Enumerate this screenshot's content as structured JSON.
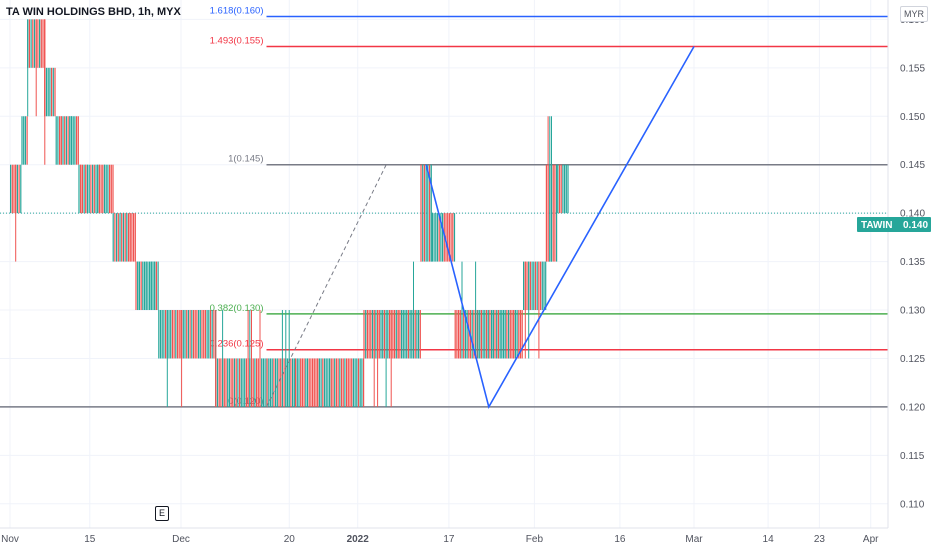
{
  "header": {
    "title": "TA WIN HOLDINGS BHD, 1h, MYX",
    "currency": "MYR"
  },
  "badges": {
    "earnings": "E"
  },
  "price_tag": {
    "symbol": "TAWIN",
    "value": "0.140"
  },
  "colors": {
    "up": "#26a69a",
    "down": "#ef5350",
    "blue": "#2962ff",
    "red": "#f23645",
    "green": "#4caf50",
    "grey": "#787b86",
    "priceline": "#26a69a"
  },
  "chart_data": {
    "type": "candlestick",
    "title": "TA WIN HOLDINGS BHD, 1h, MYX",
    "ylim": [
      0.1075,
      0.162
    ],
    "y_ticks": [
      0.11,
      0.115,
      0.12,
      0.125,
      0.13,
      0.135,
      0.14,
      0.145,
      0.15,
      0.155,
      0.16
    ],
    "x_ticks": [
      {
        "label": "Nov",
        "day": 0,
        "bold": false
      },
      {
        "label": "15",
        "day": 14,
        "bold": false
      },
      {
        "label": "Dec",
        "day": 30,
        "bold": false
      },
      {
        "label": "20",
        "day": 49,
        "bold": false
      },
      {
        "label": "2022",
        "day": 61,
        "bold": true
      },
      {
        "label": "17",
        "day": 77,
        "bold": false
      },
      {
        "label": "Feb",
        "day": 92,
        "bold": false
      },
      {
        "label": "16",
        "day": 107,
        "bold": false
      },
      {
        "label": "Mar",
        "day": 120,
        "bold": false
      },
      {
        "label": "14",
        "day": 133,
        "bold": false
      },
      {
        "label": "23",
        "day": 142,
        "bold": false
      },
      {
        "label": "Apr",
        "day": 151,
        "bold": false
      }
    ],
    "last_price": 0.14,
    "fib_levels": [
      {
        "label": "0(0.120)",
        "value": 0.12,
        "color": "#787b86",
        "start_day": 45
      },
      {
        "label": "0.236(0.125)",
        "value": 0.1259,
        "color": "#f23645",
        "start_day": 45
      },
      {
        "label": "0.382(0.130)",
        "value": 0.1296,
        "color": "#4caf50",
        "start_day": 45
      },
      {
        "label": "1(0.145)",
        "value": 0.145,
        "color": "#787b86",
        "start_day": 45
      },
      {
        "label": "1.493(0.155)",
        "value": 0.1572,
        "color": "#f23645",
        "start_day": 45
      },
      {
        "label": "1.618(0.160)",
        "value": 0.1603,
        "color": "#2962ff",
        "start_day": 45
      }
    ],
    "fib_anchor_line": {
      "from": {
        "day": 45,
        "value": 0.12
      },
      "to": {
        "day": 66,
        "value": 0.145
      }
    },
    "projection_path": [
      {
        "day": 73,
        "value": 0.145
      },
      {
        "day": 84,
        "value": 0.12
      },
      {
        "day": 120,
        "value": 0.1572
      }
    ],
    "price_segments": [
      {
        "start": 0,
        "end": 2,
        "open": 0.14,
        "close": 0.145,
        "low": 0.135,
        "high": 0.145
      },
      {
        "start": 2,
        "end": 3,
        "open": 0.145,
        "close": 0.15,
        "low": 0.14,
        "high": 0.155
      },
      {
        "start": 3,
        "end": 6,
        "open": 0.155,
        "close": 0.16,
        "low": 0.15,
        "high": 0.16
      },
      {
        "start": 6,
        "end": 8,
        "open": 0.155,
        "close": 0.15,
        "low": 0.145,
        "high": 0.16
      },
      {
        "start": 8,
        "end": 12,
        "open": 0.15,
        "close": 0.145,
        "low": 0.145,
        "high": 0.15
      },
      {
        "start": 12,
        "end": 18,
        "open": 0.145,
        "close": 0.14,
        "low": 0.14,
        "high": 0.145
      },
      {
        "start": 18,
        "end": 22,
        "open": 0.14,
        "close": 0.135,
        "low": 0.135,
        "high": 0.14
      },
      {
        "start": 22,
        "end": 26,
        "open": 0.135,
        "close": 0.13,
        "low": 0.13,
        "high": 0.135
      },
      {
        "start": 26,
        "end": 30,
        "open": 0.13,
        "close": 0.125,
        "low": 0.12,
        "high": 0.13
      },
      {
        "start": 30,
        "end": 36,
        "open": 0.13,
        "close": 0.125,
        "low": 0.12,
        "high": 0.13
      },
      {
        "start": 36,
        "end": 45,
        "open": 0.125,
        "close": 0.12,
        "low": 0.12,
        "high": 0.13
      },
      {
        "start": 45,
        "end": 50,
        "open": 0.125,
        "close": 0.12,
        "low": 0.12,
        "high": 0.13
      },
      {
        "start": 50,
        "end": 62,
        "open": 0.12,
        "close": 0.125,
        "low": 0.12,
        "high": 0.125
      },
      {
        "start": 62,
        "end": 68,
        "open": 0.125,
        "close": 0.13,
        "low": 0.12,
        "high": 0.13
      },
      {
        "start": 68,
        "end": 72,
        "open": 0.125,
        "close": 0.13,
        "low": 0.125,
        "high": 0.135
      },
      {
        "start": 72,
        "end": 74,
        "open": 0.135,
        "close": 0.145,
        "low": 0.135,
        "high": 0.145
      },
      {
        "start": 74,
        "end": 78,
        "open": 0.14,
        "close": 0.135,
        "low": 0.13,
        "high": 0.14
      },
      {
        "start": 78,
        "end": 82,
        "open": 0.13,
        "close": 0.125,
        "low": 0.125,
        "high": 0.135
      },
      {
        "start": 82,
        "end": 90,
        "open": 0.125,
        "close": 0.13,
        "low": 0.125,
        "high": 0.13
      },
      {
        "start": 90,
        "end": 94,
        "open": 0.13,
        "close": 0.135,
        "low": 0.125,
        "high": 0.135
      },
      {
        "start": 94,
        "end": 96,
        "open": 0.135,
        "close": 0.145,
        "low": 0.135,
        "high": 0.15
      },
      {
        "start": 96,
        "end": 98,
        "open": 0.14,
        "close": 0.145,
        "low": 0.14,
        "high": 0.145
      }
    ]
  }
}
